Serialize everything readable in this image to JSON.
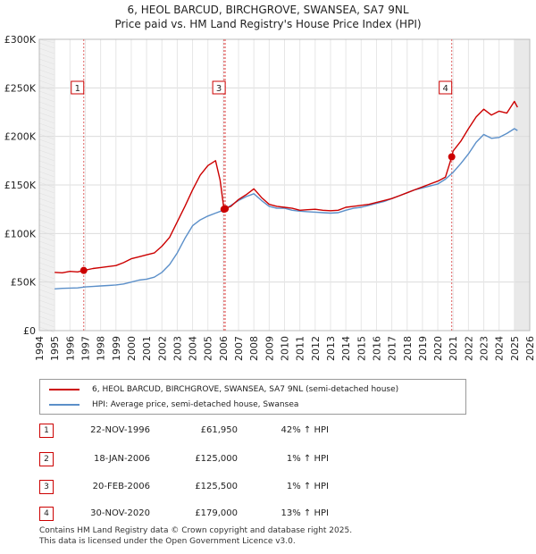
{
  "chart_data": {
    "type": "line",
    "title": "6, HEOL BARCUD, BIRCHGROVE, SWANSEA, SA7 9NL",
    "subtitle": "Price paid vs. HM Land Registry's House Price Index (HPI)",
    "xlim": [
      1994,
      2026
    ],
    "ylim": [
      0,
      300000
    ],
    "x_ticks": [
      "1994",
      "1995",
      "1996",
      "1997",
      "1998",
      "1999",
      "2000",
      "2001",
      "2002",
      "2003",
      "2004",
      "2005",
      "2006",
      "2007",
      "2008",
      "2009",
      "2010",
      "2011",
      "2012",
      "2013",
      "2014",
      "2015",
      "2016",
      "2017",
      "2018",
      "2019",
      "2020",
      "2021",
      "2022",
      "2023",
      "2024",
      "2025",
      "2026"
    ],
    "y_ticks": [
      {
        "value": 0,
        "label": "£0"
      },
      {
        "value": 50000,
        "label": "£50K"
      },
      {
        "value": 100000,
        "label": "£100K"
      },
      {
        "value": 150000,
        "label": "£150K"
      },
      {
        "value": 200000,
        "label": "£200K"
      },
      {
        "value": 250000,
        "label": "£250K"
      },
      {
        "value": 300000,
        "label": "£300K"
      }
    ],
    "series": [
      {
        "name": "6, HEOL BARCUD, BIRCHGROVE, SWANSEA, SA7 9NL (semi-detached house)",
        "color": "#cc0000",
        "x": [
          1995.0,
          1995.5,
          1996.0,
          1996.5,
          1996.9,
          1997.5,
          1998.0,
          1998.5,
          1999.0,
          1999.5,
          2000.0,
          2000.5,
          2001.0,
          2001.5,
          2002.0,
          2002.5,
          2003.0,
          2003.5,
          2004.0,
          2004.5,
          2005.0,
          2005.5,
          2005.8,
          2006.05,
          2006.13,
          2006.5,
          2007.0,
          2007.5,
          2008.0,
          2008.5,
          2009.0,
          2009.5,
          2010.0,
          2010.5,
          2011.0,
          2011.5,
          2012.0,
          2012.5,
          2013.0,
          2013.5,
          2014.0,
          2014.5,
          2015.0,
          2015.5,
          2016.0,
          2016.5,
          2017.0,
          2017.5,
          2018.0,
          2018.5,
          2019.0,
          2019.5,
          2020.0,
          2020.5,
          2020.91,
          2021.0,
          2021.5,
          2022.0,
          2022.5,
          2023.0,
          2023.5,
          2024.0,
          2024.5,
          2025.0,
          2025.2
        ],
        "values": [
          60000,
          59500,
          61000,
          60500,
          61950,
          64000,
          65000,
          66000,
          67000,
          70000,
          74000,
          76000,
          78000,
          80000,
          87000,
          96000,
          112000,
          128000,
          145000,
          160000,
          170000,
          175000,
          155000,
          125000,
          125500,
          128000,
          135000,
          140000,
          146000,
          137000,
          130000,
          128000,
          127000,
          126000,
          124000,
          124500,
          125000,
          124000,
          123500,
          124000,
          127000,
          128000,
          129000,
          130000,
          132000,
          134000,
          136000,
          139000,
          142000,
          145000,
          148000,
          151000,
          154000,
          158000,
          179000,
          185000,
          195000,
          208000,
          220000,
          228000,
          222000,
          226000,
          224000,
          236000,
          230000
        ]
      },
      {
        "name": "HPI: Average price, semi-detached house, Swansea",
        "color": "#5b8fc9",
        "x": [
          1995.0,
          1995.5,
          1996.0,
          1996.5,
          1997.0,
          1997.5,
          1998.0,
          1998.5,
          1999.0,
          1999.5,
          2000.0,
          2000.5,
          2001.0,
          2001.5,
          2002.0,
          2002.5,
          2003.0,
          2003.5,
          2004.0,
          2004.5,
          2005.0,
          2005.5,
          2006.0,
          2006.5,
          2007.0,
          2007.5,
          2008.0,
          2008.5,
          2009.0,
          2009.5,
          2010.0,
          2010.5,
          2011.0,
          2011.5,
          2012.0,
          2012.5,
          2013.0,
          2013.5,
          2014.0,
          2014.5,
          2015.0,
          2015.5,
          2016.0,
          2016.5,
          2017.0,
          2017.5,
          2018.0,
          2018.5,
          2019.0,
          2019.5,
          2020.0,
          2020.5,
          2021.0,
          2021.5,
          2022.0,
          2022.5,
          2023.0,
          2023.5,
          2024.0,
          2024.5,
          2025.0,
          2025.2
        ],
        "values": [
          43000,
          43500,
          43800,
          44000,
          45000,
          45500,
          46000,
          46500,
          47000,
          48000,
          50000,
          52000,
          53000,
          55000,
          60000,
          68000,
          80000,
          95000,
          108000,
          114000,
          118000,
          121000,
          124000,
          129000,
          134000,
          138000,
          141000,
          134000,
          128000,
          126000,
          126000,
          124000,
          123000,
          122500,
          122000,
          121500,
          121000,
          121500,
          124000,
          126000,
          127000,
          129000,
          131000,
          133000,
          136000,
          139000,
          142000,
          145000,
          147000,
          149000,
          151000,
          156000,
          163000,
          172000,
          182000,
          194000,
          202000,
          198000,
          199000,
          203000,
          208000,
          206000
        ]
      }
    ],
    "transactions": [
      {
        "n": "1",
        "x": 1996.9,
        "value": 61950
      },
      {
        "n": "2",
        "x": 2006.05,
        "value": 125000
      },
      {
        "n": "3",
        "x": 2006.13,
        "value": 125500
      },
      {
        "n": "4",
        "x": 2020.91,
        "value": 179000
      }
    ],
    "chart_boxes": [
      {
        "n": "1",
        "x": 1996.9
      },
      {
        "n": "3",
        "x": 2006.13
      },
      {
        "n": "4",
        "x": 2020.91
      }
    ]
  },
  "legend": {
    "property": "6, HEOL BARCUD, BIRCHGROVE, SWANSEA, SA7 9NL (semi-detached house)",
    "hpi": "HPI: Average price, semi-detached house, Swansea"
  },
  "table": [
    {
      "n": "1",
      "date": "22-NOV-1996",
      "price": "£61,950",
      "hpi": "42% ↑ HPI"
    },
    {
      "n": "2",
      "date": "18-JAN-2006",
      "price": "£125,000",
      "hpi": "1% ↑ HPI"
    },
    {
      "n": "3",
      "date": "20-FEB-2006",
      "price": "£125,500",
      "hpi": "1% ↑ HPI"
    },
    {
      "n": "4",
      "date": "30-NOV-2020",
      "price": "£179,000",
      "hpi": "13% ↑ HPI"
    }
  ],
  "footer": {
    "line1": "Contains HM Land Registry data © Crown copyright and database right 2025.",
    "line2": "This data is licensed under the Open Government Licence v3.0."
  },
  "colors": {
    "property": "#cc0000",
    "hpi": "#5b8fc9"
  }
}
